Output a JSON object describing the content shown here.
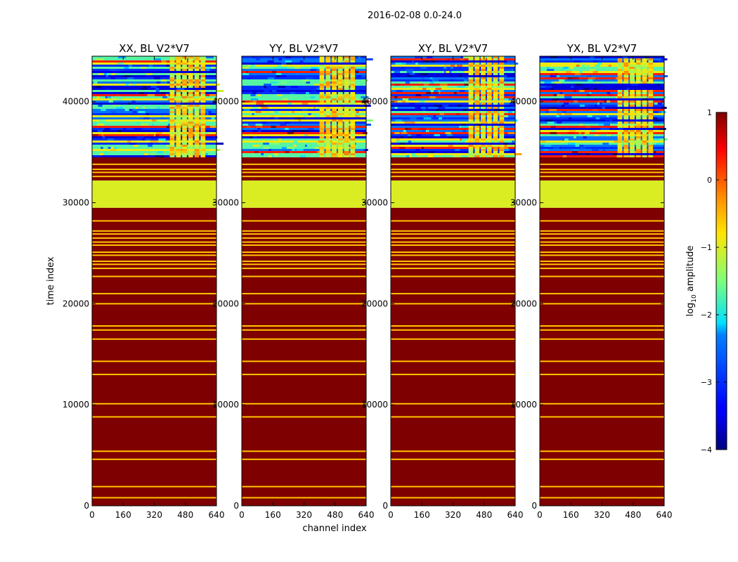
{
  "figure": {
    "suptitle": "2016-02-08 0.0-24.0"
  },
  "colorbar": {
    "label_prefix": "log",
    "label_sub": "10",
    "label_suffix": " amplitude",
    "ticks": [
      1,
      0,
      -1,
      -2,
      -3,
      -4
    ],
    "tick_labels": [
      "1",
      "0",
      "−1",
      "−2",
      "−3",
      "−4"
    ],
    "range": [
      -4,
      1
    ],
    "colormap": "jet"
  },
  "chart_data": {
    "type": "heatmap",
    "xlabel": "channel index",
    "ylabel": "time index",
    "xlim": [
      0,
      640
    ],
    "ylim": [
      0,
      44500
    ],
    "xticks": [
      0,
      160,
      320,
      480,
      640
    ],
    "xtick_labels": [
      "0",
      "160",
      "320",
      "480",
      "640"
    ],
    "yticks": [
      0,
      10000,
      20000,
      30000,
      40000
    ],
    "ytick_labels": [
      "0",
      "10000",
      "20000",
      "30000",
      "40000"
    ],
    "panels": [
      {
        "title": "XX, BL V2*V7",
        "polarization": "XX"
      },
      {
        "title": "YY, BL V2*V7",
        "polarization": "YY"
      },
      {
        "title": "XY, BL V2*V7",
        "polarization": "XY"
      },
      {
        "title": "YX, BL V2*V7",
        "polarization": "YX"
      }
    ],
    "bands": [
      {
        "t_start": 0,
        "t_end": 29500,
        "log_amp": 1,
        "description": "saturated region"
      },
      {
        "t_start": 29500,
        "t_end": 32200,
        "log_amp": -1,
        "description": "flat region"
      },
      {
        "t_start": 32200,
        "t_end": 34500,
        "log_amp": 1,
        "description": "saturated region"
      },
      {
        "t_start": 34500,
        "t_end": 44500,
        "log_amp_range": [
          -4,
          0
        ],
        "description": "noisy region"
      }
    ],
    "line_times": [
      800,
      1900,
      4600,
      5400,
      8800,
      10100,
      13000,
      14300,
      16500,
      17400,
      17800,
      20000,
      21000,
      22700,
      23500,
      23900,
      24200,
      24800,
      25100,
      25800,
      26100,
      26500,
      26900,
      27200,
      28200,
      32600,
      33000,
      33300,
      33800
    ],
    "bright_column_start": 400,
    "bright_column_end": 590
  }
}
